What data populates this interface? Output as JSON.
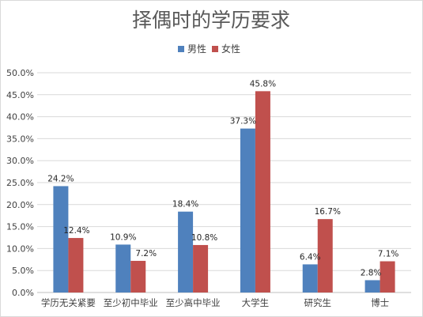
{
  "chart_data": {
    "type": "bar",
    "title": "择偶时的学历要求",
    "categories": [
      "学历无关紧要",
      "至少初中毕业",
      "至少高中毕业",
      "大学生",
      "研究生",
      "博士"
    ],
    "series": [
      {
        "name": "男性",
        "color": "#4f81bd",
        "values": [
          24.2,
          10.9,
          18.4,
          37.3,
          6.4,
          2.8
        ],
        "labels": [
          "24.2%",
          "10.9%",
          "18.4%",
          "37.3%",
          "6.4%",
          "2.8%"
        ]
      },
      {
        "name": "女性",
        "color": "#c0504d",
        "values": [
          12.4,
          7.2,
          10.8,
          45.8,
          16.7,
          7.1
        ],
        "labels": [
          "12.4%",
          "7.2%",
          "10.8%",
          "45.8%",
          "16.7%",
          "7.1%"
        ]
      }
    ],
    "ylim": [
      0,
      50
    ],
    "yticks": [
      "0.0%",
      "5.0%",
      "10.0%",
      "15.0%",
      "20.0%",
      "25.0%",
      "30.0%",
      "35.0%",
      "40.0%",
      "45.0%",
      "50.0%"
    ],
    "legend_position": "top-center",
    "grid": true,
    "grid_color": "#d9d9d9",
    "xlabel": "",
    "ylabel": ""
  }
}
